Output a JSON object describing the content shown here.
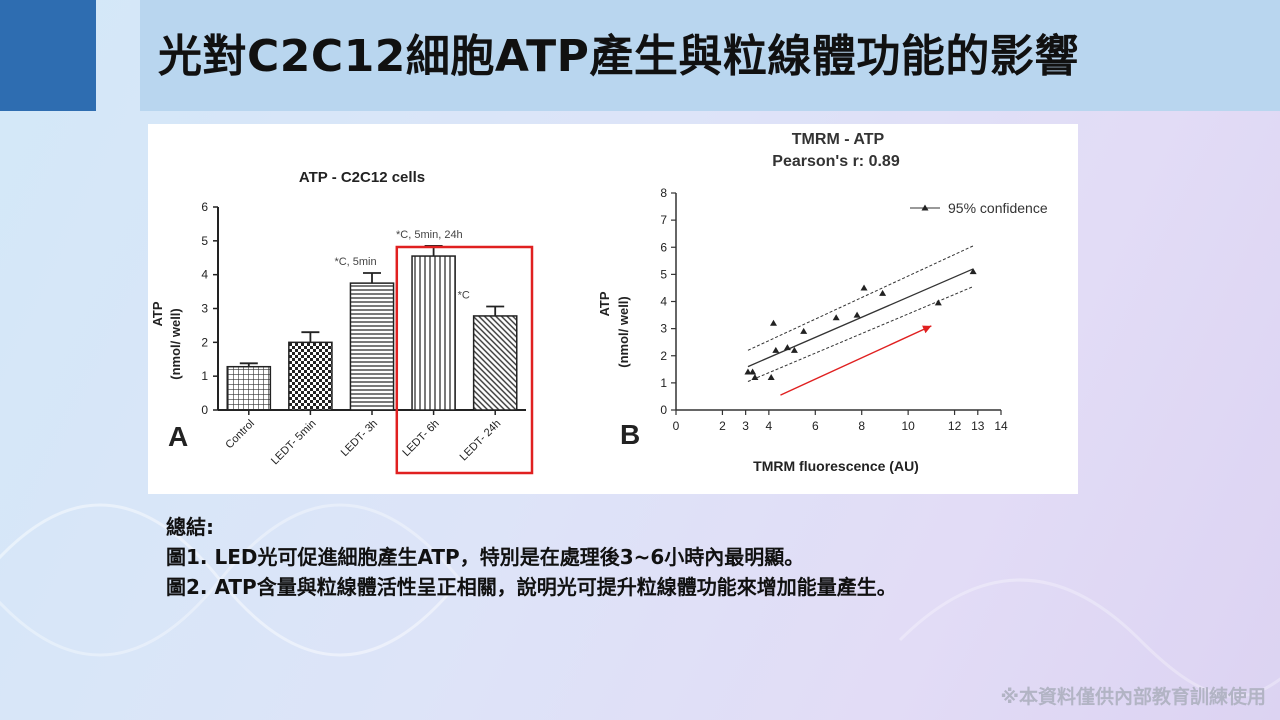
{
  "slide": {
    "title": "光對C2C12細胞ATP產生與粒線體功能的影響",
    "footer_note": "※本資料僅供內部教育訓練使用"
  },
  "summary": {
    "heading": "總結:",
    "points": [
      "圖1. LED光可促進細胞產生ATP，特別是在處理後3~6小時內最明顯。",
      "圖2. ATP含量與粒線體活性呈正相關，說明光可提升粒線體功能來增加能量產生。"
    ]
  },
  "chart_data": [
    {
      "type": "bar",
      "panel": "A",
      "title": "ATP - C2C12 cells",
      "ylabel": "ATP",
      "ylabel_unit": "(nmol/ well)",
      "ylim": [
        0,
        6
      ],
      "yticks": [
        "0",
        "1",
        "2",
        "3",
        "4",
        "5",
        "6"
      ],
      "categories": [
        "Control",
        "LEDT- 5min",
        "LEDT- 3h",
        "LEDT- 6h",
        "LEDT- 24h"
      ],
      "values": [
        1.28,
        2.0,
        3.75,
        4.55,
        2.78
      ],
      "errors": [
        0.1,
        0.3,
        0.3,
        0.3,
        0.28
      ],
      "patterns": [
        "grid",
        "checker",
        "horizontal",
        "vertical",
        "diagonal"
      ],
      "annotations": [
        "",
        "",
        "*C, 5min",
        "*C, 5min, 24h",
        "*C"
      ],
      "highlight": {
        "categories": [
          "LEDT- 6h",
          "LEDT- 24h"
        ],
        "color": "#e02020"
      },
      "grid": false
    },
    {
      "type": "scatter",
      "panel": "B",
      "title": "TMRM - ATP",
      "subtitle": "Pearson's r: 0.89",
      "xlabel": "TMRM fluorescence (AU)",
      "ylabel": "ATP",
      "ylabel_unit": "(nmol/ well)",
      "xlim": [
        0,
        14
      ],
      "ylim": [
        0,
        8
      ],
      "xticks": [
        "0",
        "2",
        "3",
        "4",
        "6",
        "8",
        "10",
        "12",
        "13",
        "14"
      ],
      "yticks": [
        "0",
        "1",
        "2",
        "3",
        "4",
        "5",
        "6",
        "7",
        "8"
      ],
      "legend": "95% confidence",
      "legend_position": "top-right",
      "points": [
        {
          "x": 3.1,
          "y": 1.4
        },
        {
          "x": 3.3,
          "y": 1.4
        },
        {
          "x": 3.4,
          "y": 1.2
        },
        {
          "x": 4.1,
          "y": 1.2
        },
        {
          "x": 4.2,
          "y": 3.2
        },
        {
          "x": 4.3,
          "y": 2.2
        },
        {
          "x": 4.8,
          "y": 2.3
        },
        {
          "x": 5.1,
          "y": 2.2
        },
        {
          "x": 5.5,
          "y": 2.9
        },
        {
          "x": 6.9,
          "y": 3.4
        },
        {
          "x": 7.8,
          "y": 3.5
        },
        {
          "x": 8.1,
          "y": 4.5
        },
        {
          "x": 8.9,
          "y": 4.3
        },
        {
          "x": 11.3,
          "y": 3.95
        },
        {
          "x": 12.8,
          "y": 5.1
        }
      ],
      "fit_line": {
        "x1": 3.1,
        "y1": 1.6,
        "x2": 12.8,
        "y2": 5.2
      },
      "ci_upper": {
        "x1": 3.1,
        "y1": 2.2,
        "x2": 12.8,
        "y2": 6.05
      },
      "ci_lower": {
        "x1": 3.1,
        "y1": 1.05,
        "x2": 12.8,
        "y2": 4.55
      },
      "trend_arrow": {
        "x1": 4.5,
        "y1": 0.55,
        "x2": 11.0,
        "y2": 3.1,
        "color": "#e02020"
      },
      "grid": false
    }
  ]
}
